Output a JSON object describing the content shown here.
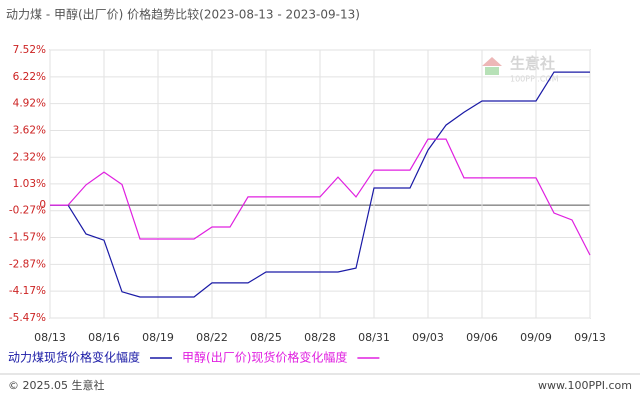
{
  "chart_data": {
    "type": "line",
    "title": "动力煤 - 甲醇(出厂价) 价格趋势比较(2023-08-13 - 2023-09-13)",
    "categories": [
      "08/13",
      null,
      null,
      "08/16",
      null,
      null,
      "08/19",
      null,
      null,
      "08/22",
      null,
      null,
      "08/25",
      null,
      null,
      "08/28",
      null,
      null,
      "08/31",
      null,
      null,
      "09/03",
      null,
      null,
      "09/06",
      null,
      null,
      "09/09",
      null,
      null,
      "09/13"
    ],
    "series": [
      {
        "name": "动力煤现货价格变化幅度",
        "color": "#1a1aa6",
        "values": [
          0,
          0,
          -1.4,
          -1.7,
          -4.2,
          -4.45,
          -4.45,
          -4.45,
          -4.45,
          -3.77,
          -3.77,
          -3.77,
          -3.24,
          -3.24,
          -3.24,
          -3.24,
          -3.24,
          -3.05,
          0.83,
          0.83,
          0.83,
          2.67,
          3.88,
          4.5,
          5.05,
          5.05,
          5.05,
          5.05,
          6.45,
          6.45,
          6.45
        ]
      },
      {
        "name": "甲醇(出厂价)现货价格变化幅度",
        "color": "#e020e0",
        "values": [
          0,
          0,
          0.98,
          1.6,
          1.0,
          -1.64,
          -1.64,
          -1.64,
          -1.64,
          -1.06,
          -1.06,
          0.4,
          0.4,
          0.4,
          0.4,
          0.4,
          1.36,
          0.4,
          1.7,
          1.7,
          1.7,
          3.2,
          3.2,
          1.32,
          1.32,
          1.32,
          1.32,
          1.32,
          -0.38,
          -0.72,
          -2.42
        ]
      }
    ],
    "ylim": [
      -5.47,
      7.52
    ],
    "yticks": [
      {
        "value": 7.52,
        "label": "7.52%"
      },
      {
        "value": 6.22,
        "label": "6.22%"
      },
      {
        "value": 4.92,
        "label": "4.92%"
      },
      {
        "value": 3.62,
        "label": "3.62%"
      },
      {
        "value": 2.32,
        "label": "2.32%"
      },
      {
        "value": 1.03,
        "label": "1.03%"
      },
      0,
      {
        "value": -0.27,
        "label": "-0.27%"
      },
      {
        "value": -1.57,
        "label": "-1.57%"
      },
      {
        "value": -2.87,
        "label": "-2.87%"
      },
      {
        "value": -4.17,
        "label": "-4.17%"
      },
      {
        "value": -5.47,
        "label": "-5.47%"
      }
    ],
    "grid": true,
    "watermark": {
      "name": "生意社",
      "url": "100PPI.COM"
    },
    "footer": {
      "left": "© 2025.05 生意社",
      "right": "www.100PPI.com"
    }
  }
}
